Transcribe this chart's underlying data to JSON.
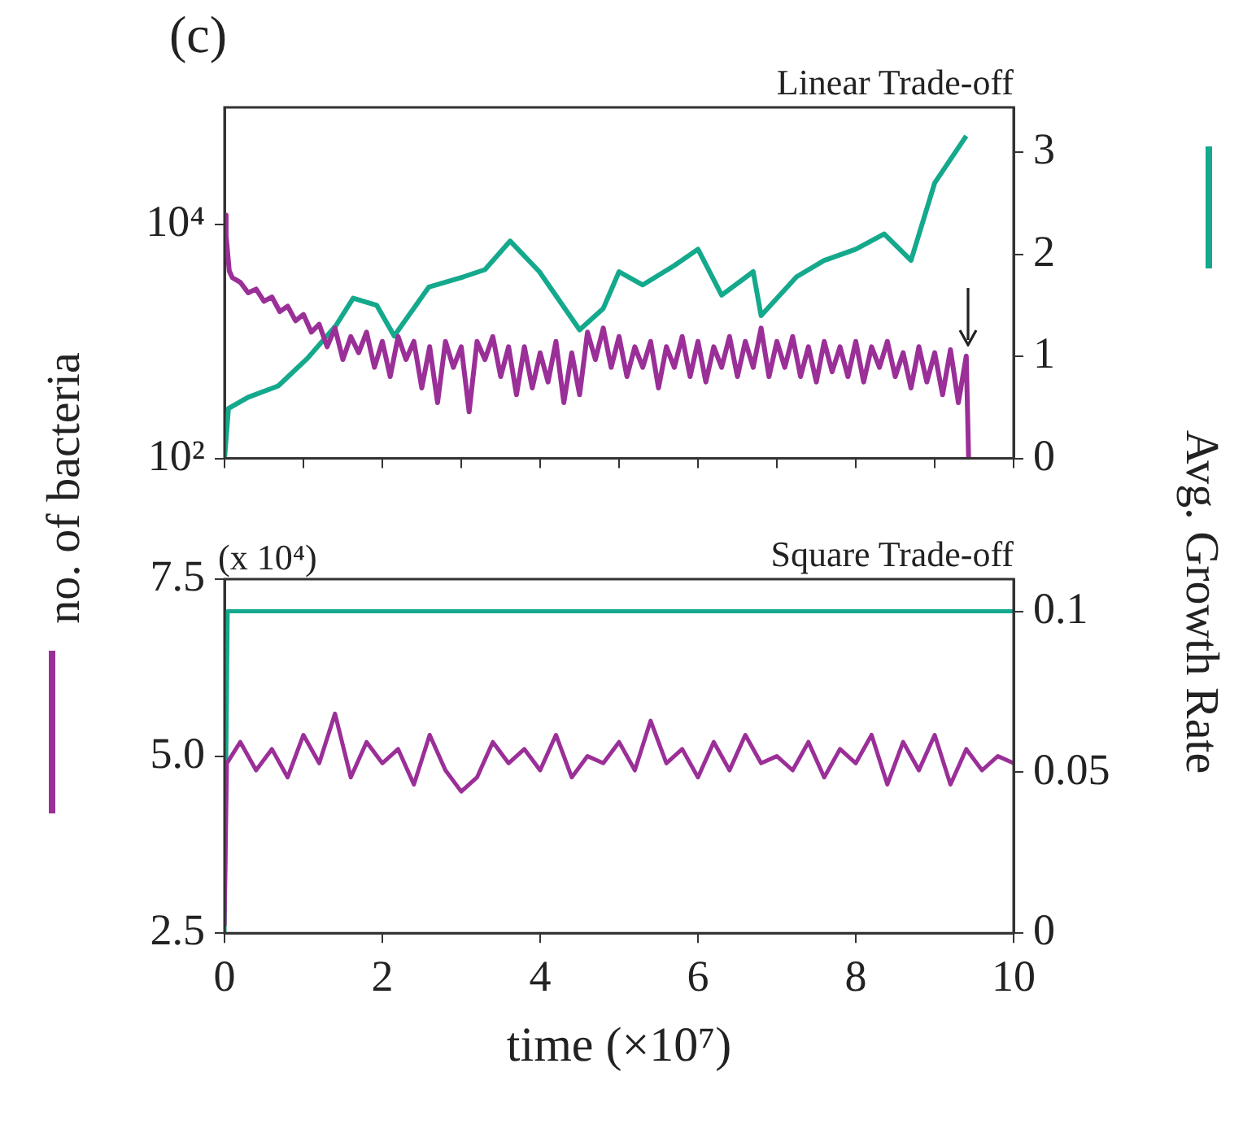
{
  "chart_data": [
    {
      "type": "line",
      "title": "Linear Trade-off",
      "annotations": [
        "(c)"
      ],
      "ylabel": "no. of bacteria",
      "y2label": "Avg. Growth Rate",
      "log": "y",
      "grid": false,
      "legend": false,
      "marker": "none",
      "tick_labels": "y",
      "xlim": [
        0,
        10
      ],
      "xticks": [
        {
          "value": 0,
          "label": null
        },
        {
          "value": 1,
          "label": null
        },
        {
          "value": 2,
          "label": null
        },
        {
          "value": 3,
          "label": null
        },
        {
          "value": 4,
          "label": null
        },
        {
          "value": 5,
          "label": null
        },
        {
          "value": 6,
          "label": null
        },
        {
          "value": 7,
          "label": null
        },
        {
          "value": 8,
          "label": null
        },
        {
          "value": 9,
          "label": null
        },
        {
          "value": 10,
          "label": null
        }
      ],
      "ylim": [
        100,
        100000
      ],
      "yticks": [
        {
          "value": 100,
          "label": "10²"
        },
        {
          "value": 10000,
          "label": "10⁴"
        }
      ],
      "y2lim": [
        0,
        3.44
      ],
      "y2ticks": [
        0,
        1,
        2,
        3
      ],
      "series": [
        {
          "color": "#9b2f98",
          "x": [
            0,
            0.02,
            0.06,
            0.1,
            0.2,
            0.3,
            0.4,
            0.5,
            0.6,
            0.7,
            0.8,
            0.9,
            1.0,
            1.1,
            1.2,
            1.3,
            1.4,
            1.5,
            1.6,
            1.7,
            1.8,
            1.9,
            2.0,
            2.1,
            2.2,
            2.3,
            2.4,
            2.5,
            2.6,
            2.7,
            2.8,
            2.9,
            3.0,
            3.1,
            3.2,
            3.3,
            3.4,
            3.5,
            3.6,
            3.7,
            3.8,
            3.9,
            4.0,
            4.1,
            4.2,
            4.3,
            4.4,
            4.5,
            4.6,
            4.7,
            4.8,
            4.9,
            5.0,
            5.1,
            5.2,
            5.3,
            5.4,
            5.5,
            5.6,
            5.7,
            5.8,
            5.9,
            6.0,
            6.1,
            6.2,
            6.3,
            6.4,
            6.5,
            6.6,
            6.7,
            6.8,
            6.9,
            7.0,
            7.1,
            7.2,
            7.3,
            7.4,
            7.5,
            7.6,
            7.7,
            7.8,
            7.9,
            8.0,
            8.1,
            8.2,
            8.3,
            8.4,
            8.5,
            8.6,
            8.7,
            8.8,
            8.9,
            9.0,
            9.1,
            9.2,
            9.3,
            9.4,
            9.43
          ],
          "values": [
            12000,
            8000,
            4000,
            3500,
            3200,
            2600,
            2800,
            2200,
            2400,
            1800,
            2000,
            1500,
            1700,
            1200,
            1400,
            900,
            1300,
            700,
            1100,
            800,
            1200,
            600,
            1000,
            500,
            1100,
            700,
            1000,
            400,
            900,
            300,
            1000,
            600,
            900,
            250,
            1000,
            700,
            1100,
            500,
            900,
            350,
            900,
            400,
            800,
            450,
            1000,
            300,
            800,
            350,
            1200,
            700,
            1300,
            600,
            1100,
            500,
            900,
            600,
            1000,
            400,
            900,
            600,
            1100,
            500,
            1000,
            450,
            900,
            600,
            1100,
            500,
            1000,
            600,
            1300,
            500,
            1000,
            600,
            1100,
            500,
            900,
            450,
            1000,
            550,
            900,
            500,
            1000,
            450,
            900,
            600,
            1000,
            500,
            800,
            400,
            900,
            450,
            800,
            350,
            850,
            300,
            750,
            100
          ]
        },
        {
          "color": "#14a98c",
          "axis": "y2",
          "x": [
            0,
            0.05,
            0.3,
            0.68,
            1.05,
            1.41,
            1.63,
            1.93,
            2.15,
            2.59,
            3.03,
            3.3,
            3.62,
            3.99,
            4.5,
            4.8,
            5.0,
            5.3,
            5.7,
            6.0,
            6.3,
            6.7,
            6.8,
            7.25,
            7.6,
            8.0,
            8.36,
            8.7,
            9.0,
            9.4
          ],
          "values": [
            0,
            0.49,
            0.6,
            0.71,
            0.98,
            1.3,
            1.57,
            1.5,
            1.2,
            1.68,
            1.78,
            1.85,
            2.13,
            1.83,
            1.26,
            1.47,
            1.83,
            1.7,
            1.89,
            2.05,
            1.6,
            1.83,
            1.4,
            1.78,
            1.94,
            2.05,
            2.2,
            1.94,
            2.7,
            3.16
          ]
        }
      ]
    },
    {
      "type": "line",
      "title": "Square Trade-off",
      "annotations": [
        "(x 10⁴)"
      ],
      "xlabel": "time (×10⁷)",
      "grid": false,
      "legend": false,
      "marker": "none",
      "xlim": [
        0,
        10
      ],
      "xticks": [
        0,
        2,
        4,
        6,
        8,
        10
      ],
      "ylim": [
        2.5,
        7.5
      ],
      "yticks": [
        2.5,
        {
          "value": 5,
          "label": "5.0"
        },
        7.5
      ],
      "y2lim": [
        0,
        0.11
      ],
      "y2ticks": [
        0,
        0.05,
        0.1
      ],
      "series": [
        {
          "color": "#9b2f98",
          "x": [
            0,
            0.03,
            0.2,
            0.4,
            0.6,
            0.8,
            1.0,
            1.2,
            1.4,
            1.6,
            1.8,
            2.0,
            2.2,
            2.4,
            2.6,
            2.8,
            3.0,
            3.2,
            3.4,
            3.6,
            3.8,
            4.0,
            4.2,
            4.4,
            4.6,
            4.8,
            5.0,
            5.2,
            5.4,
            5.6,
            5.8,
            6.0,
            6.2,
            6.4,
            6.6,
            6.8,
            7.0,
            7.2,
            7.4,
            7.6,
            7.8,
            8.0,
            8.2,
            8.4,
            8.6,
            8.8,
            9.0,
            9.2,
            9.4,
            9.6,
            9.8,
            10.0
          ],
          "values": [
            2.6,
            4.9,
            5.2,
            4.8,
            5.1,
            4.7,
            5.3,
            4.9,
            5.6,
            4.7,
            5.2,
            4.9,
            5.1,
            4.6,
            5.3,
            4.8,
            4.5,
            4.7,
            5.2,
            4.9,
            5.1,
            4.8,
            5.3,
            4.7,
            5.0,
            4.9,
            5.2,
            4.8,
            5.5,
            4.9,
            5.1,
            4.7,
            5.2,
            4.8,
            5.3,
            4.9,
            5.0,
            4.8,
            5.2,
            4.7,
            5.1,
            4.9,
            5.3,
            4.6,
            5.2,
            4.8,
            5.3,
            4.6,
            5.1,
            4.8,
            5.0,
            4.9
          ]
        },
        {
          "color": "#14a98c",
          "axis": "y2",
          "x": [
            0,
            0.04,
            1,
            2,
            3,
            4,
            5,
            6,
            7,
            8,
            9,
            10
          ],
          "values": [
            0,
            0.1,
            0.1,
            0.1,
            0.1,
            0.1,
            0.1,
            0.1,
            0.1,
            0.1,
            0.1,
            0.1
          ]
        }
      ]
    }
  ]
}
